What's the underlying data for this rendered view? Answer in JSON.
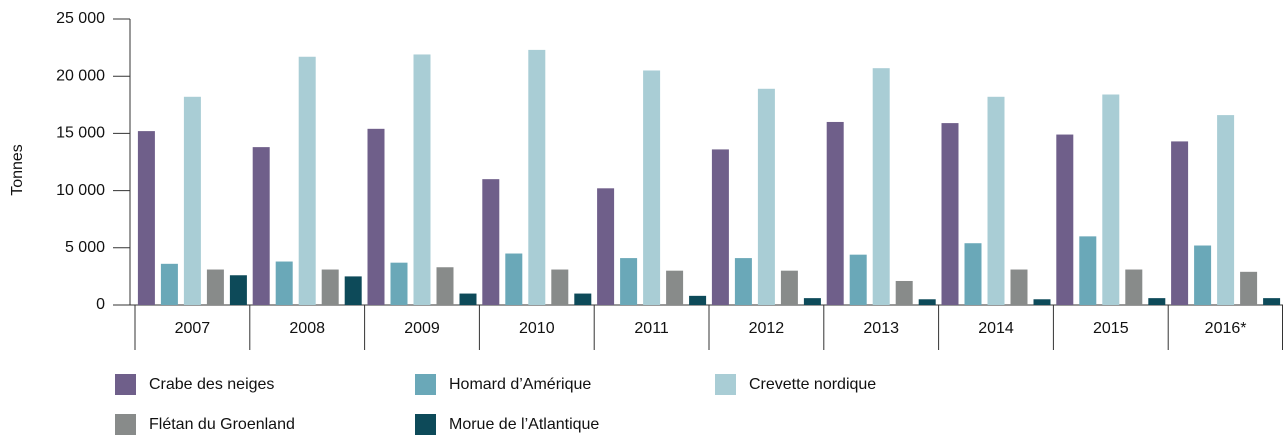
{
  "chart_data": {
    "type": "bar",
    "ylabel": "Tonnes",
    "categories": [
      "2007",
      "2008",
      "2009",
      "2010",
      "2011",
      "2012",
      "2013",
      "2014",
      "2015",
      "2016*"
    ],
    "series": [
      {
        "name": "Crabe des neiges",
        "color": "#6f5f8a",
        "values": [
          15200,
          13800,
          15400,
          11000,
          10200,
          13600,
          16000,
          15900,
          14900,
          14300
        ]
      },
      {
        "name": "Homard d’Amérique",
        "color": "#6aa8b8",
        "values": [
          3600,
          3800,
          3700,
          4500,
          4100,
          4100,
          4400,
          5400,
          6000,
          5200
        ]
      },
      {
        "name": "Crevette nordique",
        "color": "#a9cdd5",
        "values": [
          18200,
          21700,
          21900,
          22300,
          20500,
          18900,
          20700,
          18200,
          18400,
          16600
        ]
      },
      {
        "name": "Flétan du Groenland",
        "color": "#888b8a",
        "values": [
          3100,
          3100,
          3300,
          3100,
          3000,
          3000,
          2100,
          3100,
          3100,
          2900
        ]
      },
      {
        "name": "Morue de l’Atlantique",
        "color": "#0d4a59",
        "values": [
          2600,
          2500,
          1000,
          1000,
          800,
          600,
          500,
          500,
          600,
          600
        ]
      }
    ],
    "ylim": [
      0,
      25000
    ],
    "yticks": [
      0,
      {
        "value": 5000,
        "label": "5 000"
      },
      {
        "value": 10000,
        "label": "10 000"
      },
      {
        "value": 15000,
        "label": "15 000"
      },
      {
        "value": 20000,
        "label": "20 000"
      },
      {
        "value": 25000,
        "label": "25 000"
      }
    ]
  }
}
